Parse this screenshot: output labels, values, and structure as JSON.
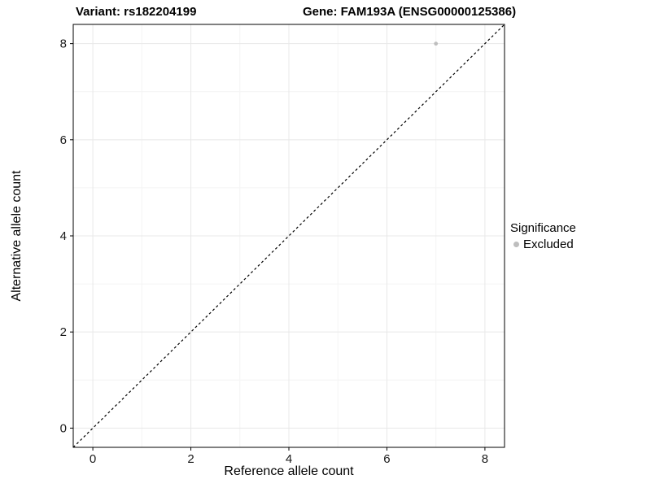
{
  "chart_data": {
    "type": "scatter",
    "title_left": "Variant: rs182204199",
    "title_right": "Gene: FAM193A (ENSG00000125386)",
    "xlabel": "Reference allele count",
    "ylabel": "Alternative allele count",
    "xlim": [
      -0.4,
      8.4
    ],
    "ylim": [
      -0.4,
      8.4
    ],
    "xticks": [
      0,
      2,
      4,
      6,
      8
    ],
    "yticks": [
      0,
      2,
      4,
      6,
      8
    ],
    "xticks_minor": [
      1,
      3,
      5,
      7
    ],
    "yticks_minor": [
      1,
      3,
      5,
      7
    ],
    "grid": "on",
    "identity_line": {
      "style": "dashed",
      "slope": 1,
      "intercept": 0,
      "color": "#000000"
    },
    "series": [
      {
        "name": "Excluded",
        "color": "#bebebe",
        "point_radius": 2.4,
        "points": [
          {
            "x": 7,
            "y": 8
          }
        ]
      }
    ],
    "legend": {
      "title": "Significance",
      "position": "right",
      "entries": [
        {
          "label": "Excluded",
          "color": "#bebebe"
        }
      ]
    },
    "colors": {
      "panel_background": "#ffffff",
      "panel_border": "#000000",
      "grid_major": "#e8e8e8",
      "grid_minor": "#f4f4f4",
      "tick": "#000000",
      "axis_text": "#1a1a1a"
    }
  }
}
